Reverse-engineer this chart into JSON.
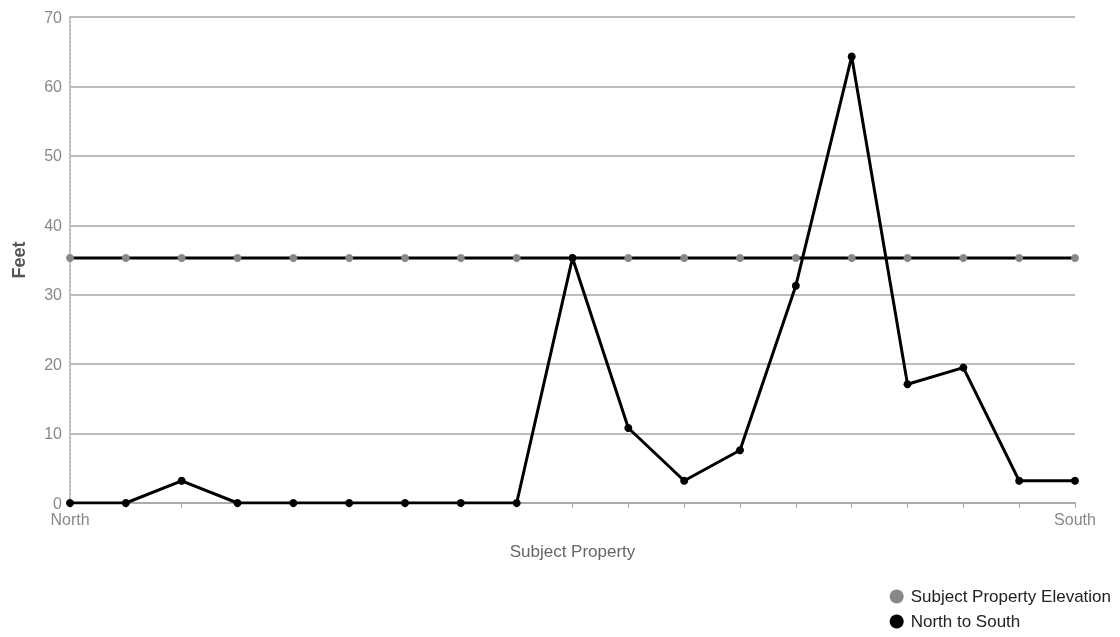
{
  "chart_data": {
    "type": "line",
    "xlabel": "Subject Property",
    "ylabel": "Feet",
    "categories": [
      "North",
      null,
      null,
      null,
      null,
      null,
      null,
      null,
      null,
      null,
      null,
      null,
      null,
      null,
      null,
      null,
      null,
      null,
      "South"
    ],
    "series": [
      {
        "name": "Subject Property Elevation",
        "color": "#888888",
        "values": [
          35.3,
          35.3,
          35.3,
          35.3,
          35.3,
          35.3,
          35.3,
          35.3,
          35.3,
          35.3,
          35.3,
          35.3,
          35.3,
          35.3,
          35.3,
          35.3,
          35.3,
          35.3,
          35.3
        ]
      },
      {
        "name": "North to South",
        "color": "#000000",
        "values": [
          0,
          0,
          3.2,
          0,
          0,
          0,
          0,
          0,
          0,
          35.3,
          10.8,
          3.2,
          7.6,
          31.3,
          64.3,
          17.1,
          19.5,
          3.2,
          3.2
        ]
      }
    ],
    "ylim": [
      0,
      70
    ],
    "yticks": [
      0,
      10,
      20,
      30,
      40,
      50,
      60,
      70
    ],
    "grid": "y",
    "legend": "bottom right",
    "marker": "circle",
    "line_style": "solid"
  }
}
